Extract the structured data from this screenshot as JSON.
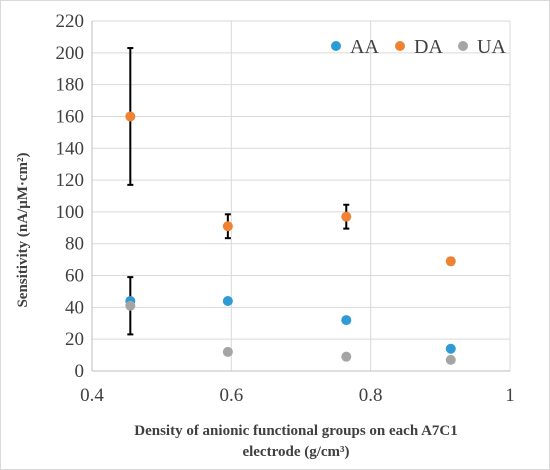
{
  "chart_data": {
    "type": "scatter",
    "title": "",
    "xlabel_line1": "Density of anionic functional groups on each A7C1",
    "xlabel_line2": "electrode (g/cm³)",
    "ylabel": "Sensitivity (nA/μM·cm²)",
    "xlim": [
      0.4,
      1.0
    ],
    "ylim": [
      0,
      220
    ],
    "xticks": [
      0.4,
      0.6,
      0.8,
      1.0
    ],
    "xtick_labels": [
      "0.4",
      "0.6",
      "0.8",
      "1"
    ],
    "yticks": [
      0,
      20,
      40,
      60,
      80,
      100,
      120,
      140,
      160,
      180,
      200,
      220
    ],
    "grid": true,
    "legend_position": "top-right",
    "series": [
      {
        "name": "AA",
        "color": "#2e9bd6",
        "x": [
          0.455,
          0.595,
          0.765,
          0.915
        ],
        "y": [
          44,
          44,
          32,
          14
        ],
        "error": [
          null,
          null,
          null,
          null
        ]
      },
      {
        "name": "DA",
        "color": "#f08233",
        "x": [
          0.455,
          0.595,
          0.765,
          0.915
        ],
        "y": [
          160,
          91,
          97,
          69
        ],
        "error": [
          43,
          7.5,
          7.5,
          2
        ]
      },
      {
        "name": "UA",
        "color": "#a5a5a5",
        "x": [
          0.455,
          0.595,
          0.765,
          0.915
        ],
        "y": [
          41,
          12,
          9,
          7
        ],
        "error": [
          18,
          null,
          null,
          null
        ]
      }
    ]
  }
}
